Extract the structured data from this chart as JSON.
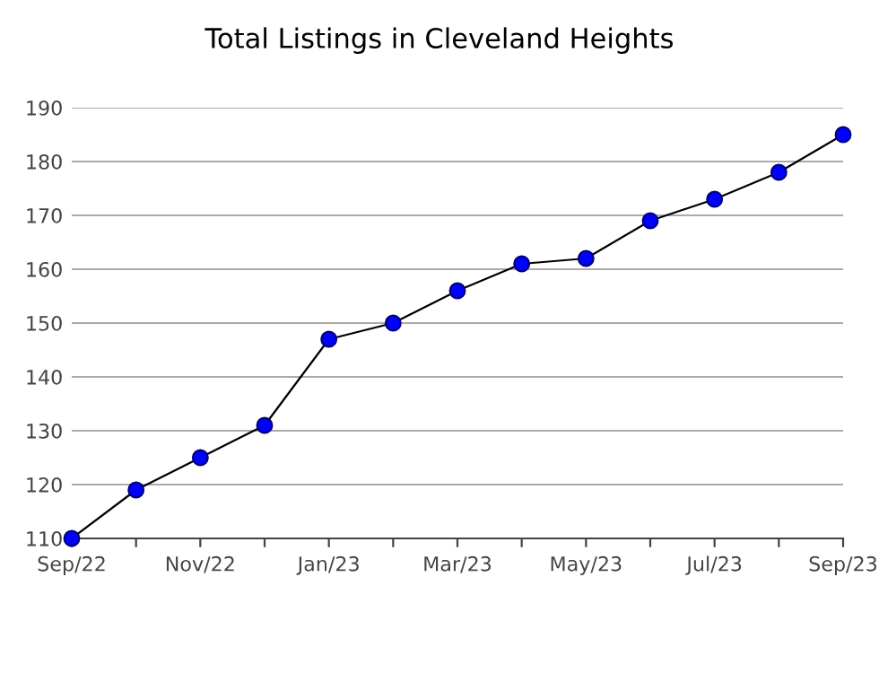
{
  "chart_data": {
    "type": "line",
    "title": "Total Listings in Cleveland Heights",
    "categories": [
      "Sep/22",
      null,
      "Nov/22",
      null,
      "Jan/23",
      null,
      "Mar/23",
      null,
      "May/23",
      null,
      "Jul/23",
      null,
      "Sep/23"
    ],
    "series": [
      {
        "color": "#0000ff",
        "values": [
          110,
          119,
          125,
          131,
          147,
          150,
          156,
          161,
          162,
          169,
          173,
          178,
          185
        ]
      }
    ],
    "ylim": [
      110,
      190
    ],
    "yticks": [
      110,
      120,
      130,
      140,
      150,
      160,
      170,
      180,
      190
    ],
    "grid": "y",
    "marker": "circle",
    "line_style": "solid"
  }
}
